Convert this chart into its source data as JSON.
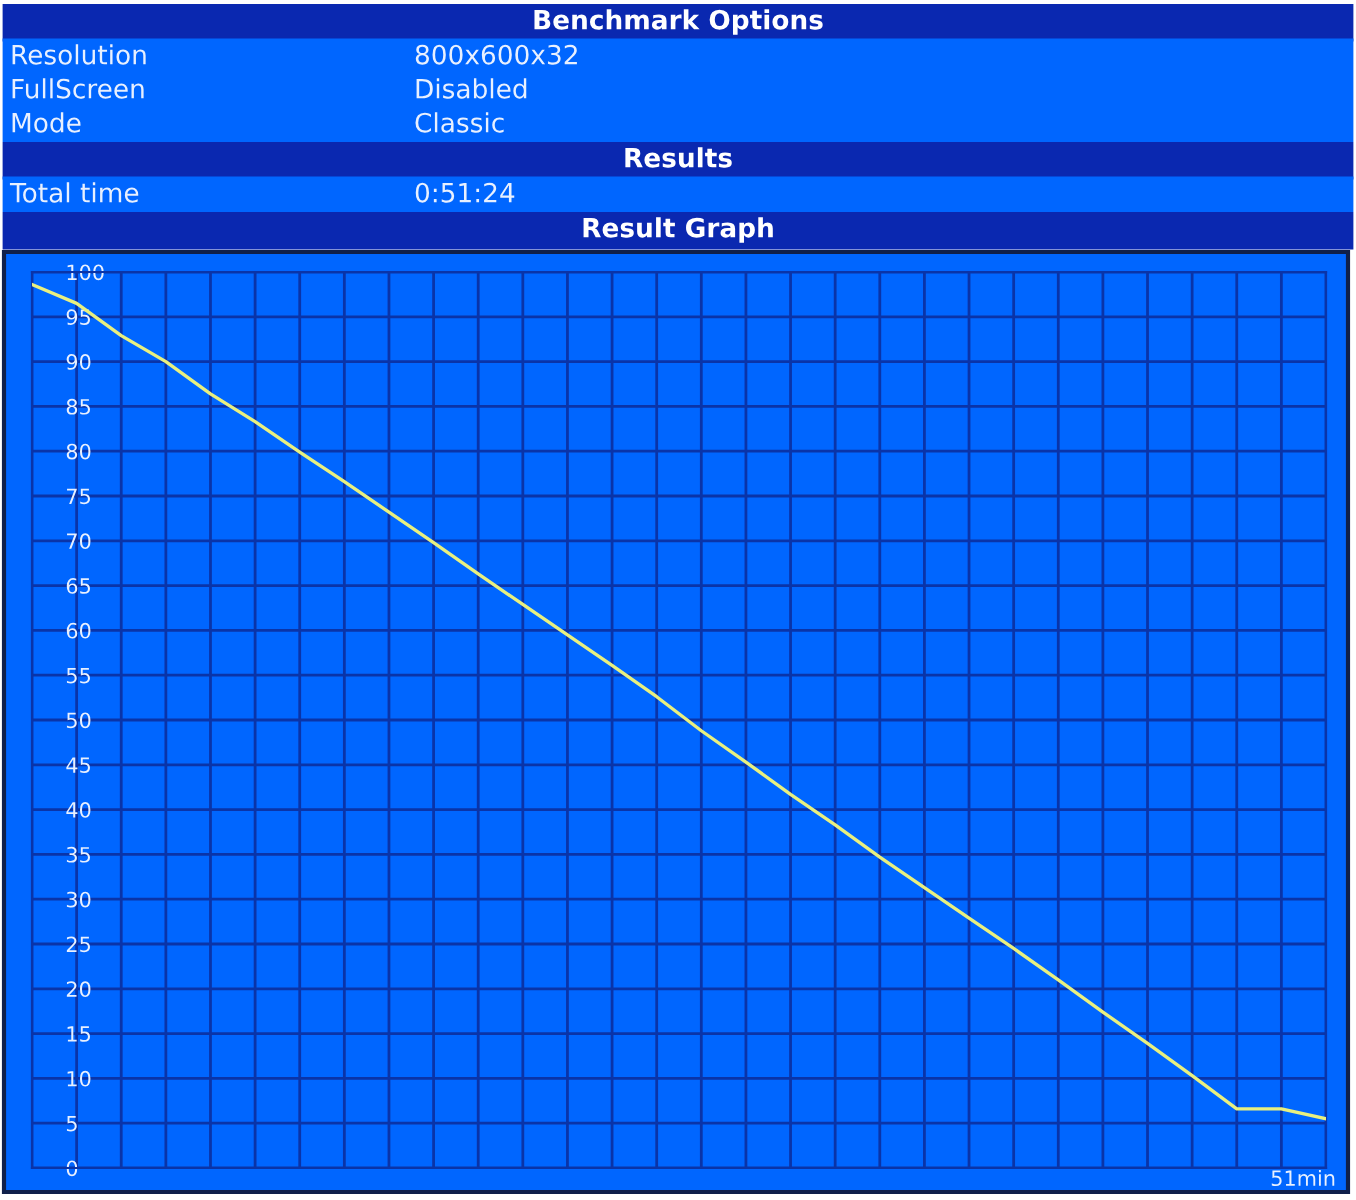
{
  "chart_data": [
    {
      "type": "other",
      "title": "Benchmark Options",
      "annotations": [
        "Resolution",
        "800x600x32",
        "FullScreen",
        "Disabled",
        "Mode",
        "Classic"
      ]
    },
    {
      "type": "other",
      "title": "Results",
      "annotations": [
        "Total time",
        "0:51:24"
      ]
    },
    {
      "type": "line",
      "title": "Result Graph",
      "categories": [
        null,
        null,
        null,
        null,
        null,
        null,
        null,
        null,
        null,
        null,
        null,
        null,
        null,
        null,
        null,
        null,
        null,
        null,
        null,
        null,
        null,
        null,
        null,
        null,
        null,
        null,
        null,
        null,
        null,
        null
      ],
      "series": [
        {
          "color": "#e8f080",
          "values": [
            98.6,
            96.5,
            92.9,
            90.0,
            86.4,
            83.3,
            79.9,
            76.6,
            73.2,
            69.8,
            66.3,
            62.9,
            59.5,
            56.1,
            52.6,
            48.8,
            45.3,
            41.7,
            38.3,
            34.7,
            31.3,
            27.9,
            24.5,
            21.0,
            17.4,
            13.9,
            10.3,
            6.6,
            6.6,
            5.5
          ]
        }
      ],
      "ylim": [
        0,
        100
      ],
      "yticks": [
        0,
        5,
        10,
        15,
        20,
        25,
        30,
        35,
        40,
        45,
        50,
        55,
        60,
        65,
        70,
        75,
        80,
        85,
        90,
        95,
        100
      ],
      "annotations": [
        "51min"
      ],
      "grid": true,
      "line_style": "solid",
      "marker": "none"
    }
  ]
}
